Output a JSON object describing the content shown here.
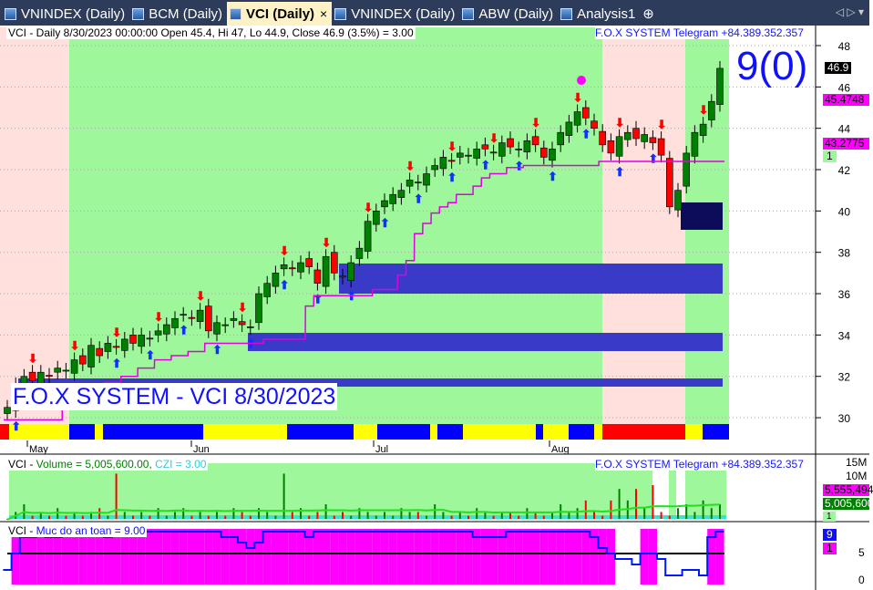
{
  "tabs": [
    {
      "label": "VNINDEX (Daily)"
    },
    {
      "label": "BCM (Daily)"
    },
    {
      "label": "VCI (Daily)",
      "active": true
    },
    {
      "label": "VNINDEX (Daily)"
    },
    {
      "label": "ABW (Daily)"
    },
    {
      "label": "Analysis1"
    }
  ],
  "tab_nav": "◁ ▷ ▾",
  "price_panel": {
    "header": "VCI - Daily 8/30/2023 00:00:00 Open 45.4, Hi 47, Lo 44.9, Close 46.9 (3.5%)  = 3.00",
    "telegram": "F.O.X SYSTEM Telegram +84.389.352.357",
    "big_label": "9(0)",
    "watermark": "F.O.X SYSTEM - VCI 8/30/2023",
    "last_price": "46.9",
    "line1_value": "45.4748",
    "line2_value": "43.2775",
    "signal_count": "1"
  },
  "volume_panel": {
    "prefix": "VCI - ",
    "vol_label": "Volume = 5,005,600.00, ",
    "czi_label": "CZI = 3.00",
    "telegram": "F.O.X SYSTEM Telegram +84.389.352.357",
    "ma_value": "5,555,494",
    "last_volume": "5,005,600",
    "signal": "1",
    "ticks": [
      "15M",
      "10M"
    ]
  },
  "safety_panel": {
    "prefix": "VCI - ",
    "label": "Muc do an toan = 9.00",
    "value": "9",
    "signal": "1",
    "ticks": [
      "5",
      "0"
    ]
  },
  "colors": {
    "up": "#008000",
    "down": "#ff0000",
    "bull_zone": "#9ef79a",
    "bear_zone": "#ffe0dc",
    "band": "#3a3ac8",
    "trail": "#e000e0",
    "safety": "#ff00ff"
  },
  "chart_data": {
    "type": "candlestick",
    "x_ticks": [
      "May",
      "Jun",
      "Jul",
      "Aug"
    ],
    "y_ticks": [
      30,
      32,
      34,
      36,
      38,
      40,
      42,
      44,
      46,
      48
    ],
    "ylim": [
      29,
      49
    ],
    "close": [
      30.5,
      31.6,
      32.0,
      31.8,
      32.2,
      32.0,
      32.4,
      32.3,
      32.8,
      32.6,
      33.5,
      33.0,
      33.6,
      33.4,
      33.8,
      33.6,
      34.0,
      33.8,
      34.2,
      34.5,
      34.8,
      35.0,
      34.8,
      35.2,
      34.2,
      34.6,
      34.5,
      34.8,
      34.5,
      34.4,
      36.0,
      36.5,
      37.0,
      37.4,
      37.2,
      37.5,
      37.3,
      36.5,
      37.8,
      37.0,
      36.8,
      37.5,
      38.2,
      39.5,
      40.0,
      40.5,
      40.8,
      41.0,
      41.5,
      41.4,
      41.8,
      42.2,
      42.6,
      42.4,
      42.8,
      42.7,
      43.0,
      43.0,
      42.8,
      43.3,
      43.1,
      43.0,
      43.4,
      43.2,
      42.6,
      43.0,
      43.8,
      44.3,
      44.8,
      44.5,
      44.0,
      43.2,
      42.8,
      43.6,
      43.8,
      43.5,
      43.7,
      43.3,
      42.7,
      40.2,
      41.0,
      42.8,
      43.8,
      44.2,
      45.3,
      46.9
    ],
    "volume_millions": [
      1,
      3,
      5,
      2,
      3,
      2,
      4,
      2,
      3,
      2,
      3,
      4,
      2,
      13,
      3,
      2,
      3,
      2,
      4,
      2,
      3,
      4,
      2,
      3,
      2,
      3,
      2,
      4,
      3,
      2,
      4,
      3,
      2,
      13,
      3,
      4,
      2,
      3,
      5,
      2,
      3,
      2,
      4,
      3,
      2,
      3,
      2,
      4,
      3,
      3,
      2,
      5,
      3,
      2,
      3,
      2,
      4,
      3,
      2,
      3,
      3,
      2,
      4,
      3,
      2,
      3,
      5,
      3,
      4,
      6,
      3,
      2,
      6,
      9,
      6,
      9,
      4,
      10,
      3,
      2,
      4,
      5,
      3,
      6,
      4,
      5
    ],
    "safety": [
      2,
      5,
      8,
      8,
      9,
      8,
      8,
      9,
      9,
      9,
      9,
      9,
      8,
      9,
      9,
      9,
      9,
      9,
      9,
      9,
      9,
      9,
      9,
      9,
      9,
      9,
      8,
      8,
      7,
      6,
      7,
      9,
      9,
      9,
      9,
      9,
      8,
      9,
      9,
      9,
      9,
      9,
      9,
      9,
      9,
      9,
      9,
      9,
      9,
      9,
      9,
      9,
      9,
      9,
      9,
      9,
      8,
      8,
      8,
      8,
      9,
      9,
      9,
      9,
      9,
      9,
      9,
      9,
      9,
      9,
      8,
      6,
      5,
      4,
      4,
      3,
      5,
      5,
      4,
      1,
      1,
      2,
      2,
      1,
      8,
      9
    ]
  }
}
